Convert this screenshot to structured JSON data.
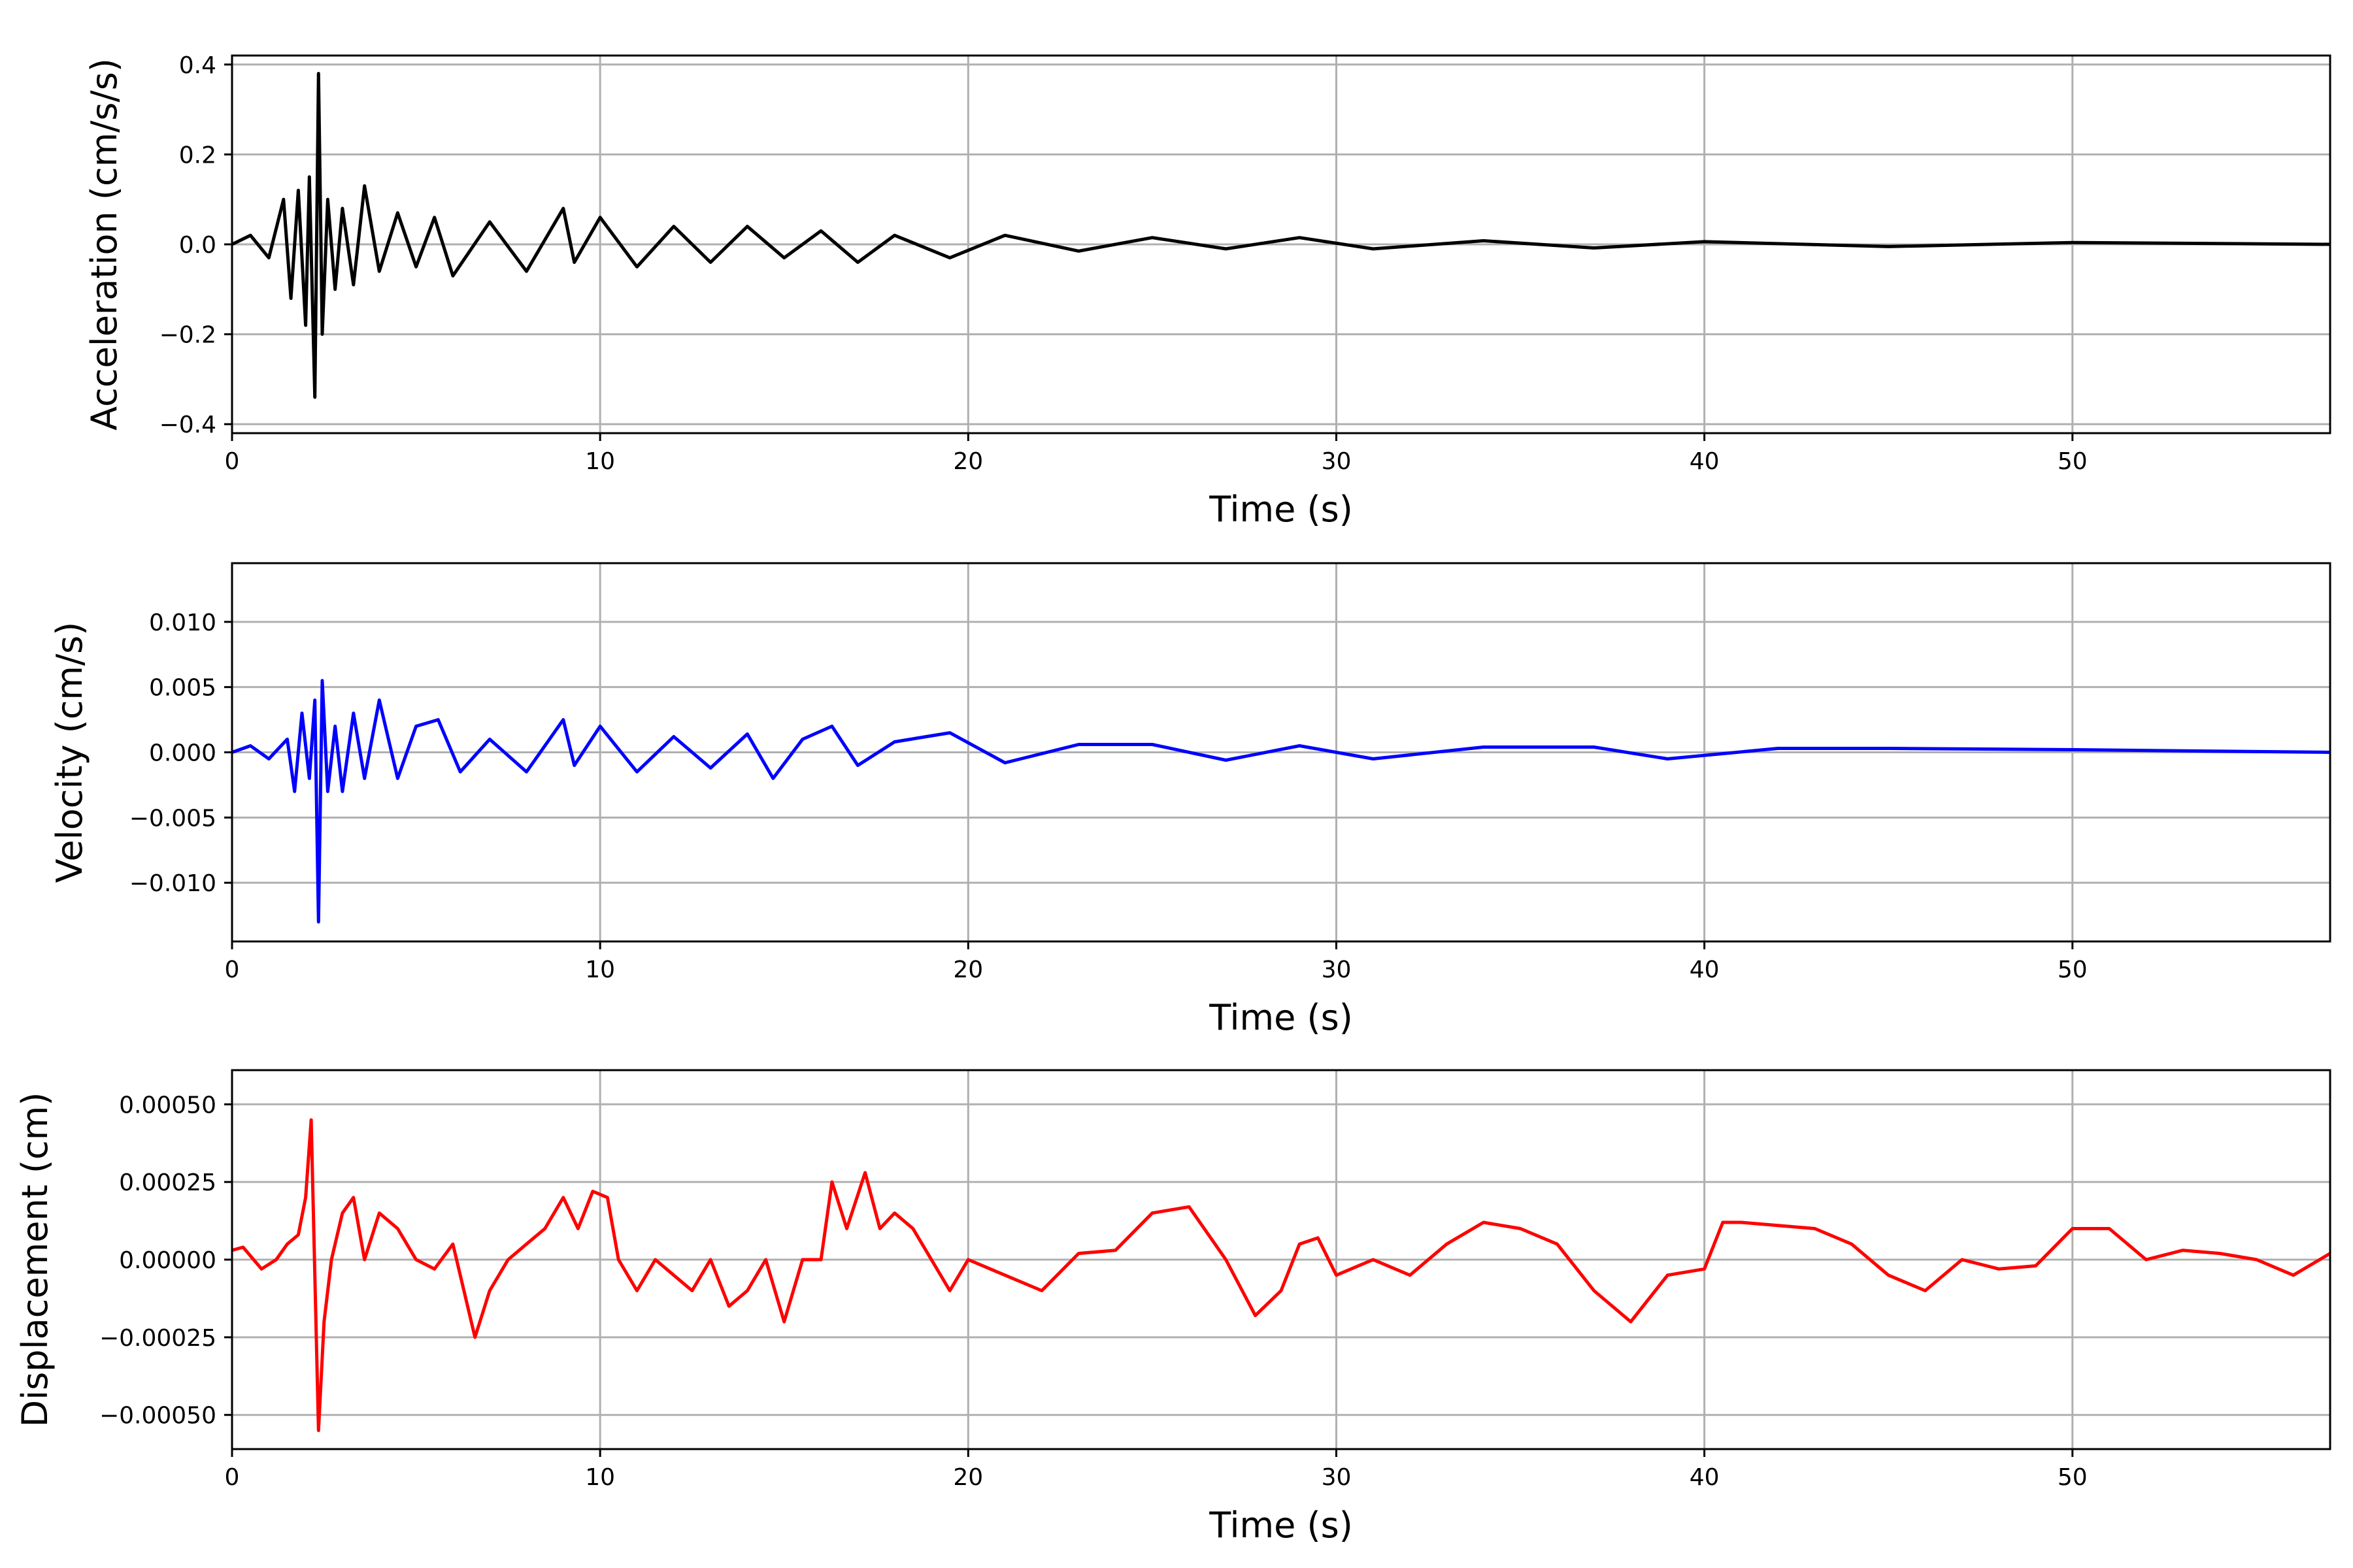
{
  "chart_data": [
    {
      "type": "line",
      "xlabel": "Time (s)",
      "ylabel": "Acceleration (cm/s/s)",
      "xlim": [
        0,
        57
      ],
      "ylim": [
        -0.42,
        0.42
      ],
      "xticks": [
        0,
        10,
        20,
        30,
        40,
        50
      ],
      "yticks": [
        -0.4,
        -0.2,
        0.0,
        0.2,
        0.4
      ],
      "ytick_labels": [
        "−0.4",
        "−0.2",
        "0.0",
        "0.2",
        "0.4"
      ],
      "grid": true,
      "color": "#000000",
      "series": [
        {
          "x": [
            0,
            0.5,
            1.0,
            1.4,
            1.6,
            1.8,
            2.0,
            2.1,
            2.25,
            2.35,
            2.45,
            2.6,
            2.8,
            3.0,
            3.3,
            3.6,
            4.0,
            4.5,
            5.0,
            5.5,
            6.0,
            7.0,
            8.0,
            9.0,
            9.3,
            10.0,
            11.0,
            12.0,
            13.0,
            14.0,
            15.0,
            16.0,
            17.0,
            18.0,
            19.5,
            21.0,
            23.0,
            25.0,
            27.0,
            29.0,
            31.0,
            34.0,
            37.0,
            40.0,
            45.0,
            50.0,
            57.0
          ],
          "y": [
            0.0,
            0.02,
            -0.03,
            0.1,
            -0.12,
            0.12,
            -0.18,
            0.15,
            -0.34,
            0.38,
            -0.2,
            0.1,
            -0.1,
            0.08,
            -0.09,
            0.13,
            -0.06,
            0.07,
            -0.05,
            0.06,
            -0.07,
            0.05,
            -0.06,
            0.08,
            -0.04,
            0.06,
            -0.05,
            0.04,
            -0.04,
            0.04,
            -0.03,
            0.03,
            -0.04,
            0.02,
            -0.03,
            0.02,
            -0.015,
            0.015,
            -0.01,
            0.015,
            -0.01,
            0.008,
            -0.008,
            0.006,
            -0.005,
            0.004,
            0.0
          ]
        }
      ]
    },
    {
      "type": "line",
      "xlabel": "Time (s)",
      "ylabel": "Velocity (cm/s)",
      "xlim": [
        0,
        57
      ],
      "ylim": [
        -0.0145,
        0.0145
      ],
      "xticks": [
        0,
        10,
        20,
        30,
        40,
        50
      ],
      "yticks": [
        -0.01,
        -0.005,
        0.0,
        0.005,
        0.01
      ],
      "ytick_labels": [
        "−0.010",
        "−0.005",
        "0.000",
        "0.005",
        "0.010"
      ],
      "grid": true,
      "color": "#0000ff",
      "series": [
        {
          "x": [
            0,
            0.5,
            1.0,
            1.5,
            1.7,
            1.9,
            2.1,
            2.25,
            2.35,
            2.45,
            2.6,
            2.8,
            3.0,
            3.3,
            3.6,
            4.0,
            4.5,
            5.0,
            5.6,
            6.2,
            7.0,
            8.0,
            9.0,
            9.3,
            10.0,
            11.0,
            12.0,
            13.0,
            14.0,
            14.7,
            15.5,
            16.3,
            17.0,
            18.0,
            19.5,
            21.0,
            23.0,
            25.0,
            27.0,
            29.0,
            31.0,
            34.0,
            37.0,
            39.0,
            42.0,
            45.0,
            50.0,
            57.0
          ],
          "y": [
            0.0,
            0.0005,
            -0.0005,
            0.001,
            -0.003,
            0.003,
            -0.002,
            0.004,
            -0.013,
            0.0055,
            -0.003,
            0.002,
            -0.003,
            0.003,
            -0.002,
            0.004,
            -0.002,
            0.002,
            0.0025,
            -0.0015,
            0.001,
            -0.0015,
            0.0025,
            -0.001,
            0.002,
            -0.0015,
            0.0012,
            -0.0012,
            0.0014,
            -0.002,
            0.001,
            0.002,
            -0.001,
            0.0008,
            0.0015,
            -0.0008,
            0.0006,
            0.0006,
            -0.0006,
            0.0005,
            -0.0005,
            0.0004,
            0.0004,
            -0.0005,
            0.0003,
            0.0003,
            0.0002,
            0.0
          ]
        }
      ]
    },
    {
      "type": "line",
      "xlabel": "Time (s)",
      "ylabel": "Displacement (cm)",
      "xlim": [
        0,
        57
      ],
      "ylim": [
        -0.00061,
        0.00061
      ],
      "xticks": [
        0,
        10,
        20,
        30,
        40,
        50
      ],
      "yticks": [
        -0.0005,
        -0.00025,
        0.0,
        0.00025,
        0.0005
      ],
      "ytick_labels": [
        "−0.00050",
        "−0.00025",
        "0.00000",
        "0.00025",
        "0.00050"
      ],
      "grid": true,
      "color": "#ff0000",
      "series": [
        {
          "x": [
            0,
            0.3,
            0.8,
            1.2,
            1.5,
            1.8,
            2.0,
            2.15,
            2.35,
            2.5,
            2.7,
            3.0,
            3.3,
            3.6,
            4.0,
            4.5,
            5.0,
            5.5,
            6.0,
            6.6,
            7.0,
            7.5,
            8.0,
            8.5,
            9.0,
            9.4,
            9.8,
            10.2,
            10.5,
            11.0,
            11.5,
            12.0,
            12.5,
            13.0,
            13.5,
            14.0,
            14.5,
            15.0,
            15.5,
            16.0,
            16.3,
            16.7,
            17.2,
            17.6,
            18.0,
            18.5,
            19.0,
            19.5,
            20.0,
            21.0,
            22.0,
            23.0,
            24.0,
            25.0,
            26.0,
            27.0,
            27.8,
            28.5,
            29.0,
            29.5,
            30.0,
            31.0,
            32.0,
            33.0,
            34.0,
            35.0,
            36.0,
            37.0,
            38.0,
            39.0,
            40.0,
            40.5,
            41.0,
            42.0,
            43.0,
            44.0,
            45.0,
            46.0,
            47.0,
            48.0,
            49.0,
            50.0,
            51.0,
            52.0,
            53.0,
            54.0,
            55.0,
            56.0,
            57.0
          ],
          "y": [
            3e-05,
            4e-05,
            -3e-05,
            0.0,
            5e-05,
            8e-05,
            0.0002,
            0.00045,
            -0.00055,
            -0.0002,
            0.0,
            0.00015,
            0.0002,
            0.0,
            0.00015,
            0.0001,
            0.0,
            -3e-05,
            5e-05,
            -0.00025,
            -0.0001,
            0.0,
            5e-05,
            0.0001,
            0.0002,
            0.0001,
            0.00022,
            0.0002,
            0.0,
            -0.0001,
            0.0,
            -5e-05,
            -0.0001,
            0.0,
            -0.00015,
            -0.0001,
            0.0,
            -0.0002,
            0.0,
            0.0,
            0.00025,
            0.0001,
            0.00028,
            0.0001,
            0.00015,
            0.0001,
            0.0,
            -0.0001,
            0.0,
            -5e-05,
            -0.0001,
            2e-05,
            3e-05,
            0.00015,
            0.00017,
            0.0,
            -0.00018,
            -0.0001,
            5e-05,
            7e-05,
            -5e-05,
            0.0,
            -5e-05,
            5e-05,
            0.00012,
            0.0001,
            5e-05,
            -0.0001,
            -0.0002,
            -5e-05,
            -3e-05,
            0.00012,
            0.00012,
            0.00011,
            0.0001,
            5e-05,
            -5e-05,
            -0.0001,
            0.0,
            -3e-05,
            -2e-05,
            0.0001,
            0.0001,
            0.0,
            3e-05,
            2e-05,
            0.0,
            -5e-05,
            2e-05
          ]
        }
      ]
    }
  ]
}
